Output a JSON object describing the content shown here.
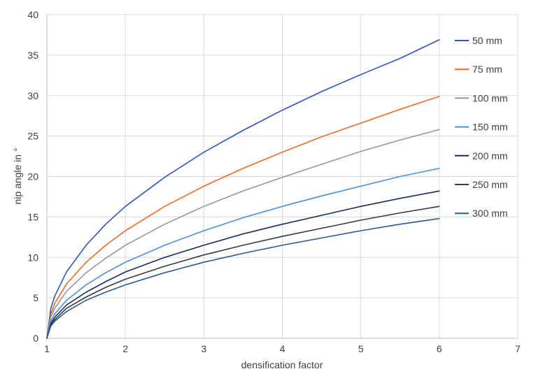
{
  "chart_data": {
    "type": "line",
    "title": "",
    "xlabel": "densification factor",
    "ylabel": "nip angle in °",
    "xlim": [
      1,
      7
    ],
    "ylim": [
      0,
      40
    ],
    "xticks": [
      "1",
      "2",
      "3",
      "4",
      "5",
      "6",
      "7"
    ],
    "yticks": [
      "0",
      "5",
      "10",
      "15",
      "20",
      "25",
      "30",
      "35",
      "40"
    ],
    "grid": true,
    "legend_position": "right",
    "x": [
      1,
      1.05,
      1.1,
      1.25,
      1.5,
      1.75,
      2,
      2.5,
      3,
      3.5,
      4,
      4.5,
      5,
      5.5,
      6
    ],
    "series": [
      {
        "name": "50 mm",
        "color": "#2f55c4",
        "values": [
          0,
          3.7,
          5.2,
          8.2,
          11.5,
          14.1,
          16.3,
          19.9,
          23.0,
          25.7,
          28.2,
          30.5,
          32.6,
          34.6,
          36.9
        ]
      },
      {
        "name": "75 mm",
        "color": "#ec6a25",
        "values": [
          0,
          3.0,
          4.3,
          6.7,
          9.4,
          11.5,
          13.3,
          16.3,
          18.8,
          21.0,
          23.0,
          24.9,
          26.6,
          28.3,
          29.9
        ]
      },
      {
        "name": "100 mm",
        "color": "#969696",
        "values": [
          0,
          2.6,
          3.7,
          5.8,
          8.1,
          9.9,
          11.5,
          14.1,
          16.3,
          18.2,
          19.9,
          21.5,
          23.1,
          24.5,
          25.8
        ]
      },
      {
        "name": "150 mm",
        "color": "#4a8fdb",
        "values": [
          0,
          2.1,
          3.0,
          4.7,
          6.6,
          8.1,
          9.4,
          11.5,
          13.3,
          14.9,
          16.3,
          17.6,
          18.8,
          20.0,
          21.0
        ]
      },
      {
        "name": "200 mm",
        "color": "#1c2c5e",
        "values": [
          0,
          1.8,
          2.6,
          4.1,
          5.7,
          7.0,
          8.2,
          10.0,
          11.5,
          12.9,
          14.1,
          15.2,
          16.3,
          17.3,
          18.2
        ]
      },
      {
        "name": "250 mm",
        "color": "#3a3a3a",
        "values": [
          0,
          1.6,
          2.3,
          3.7,
          5.1,
          6.3,
          7.3,
          8.9,
          10.3,
          11.5,
          12.6,
          13.6,
          14.6,
          15.5,
          16.3
        ]
      },
      {
        "name": "300 mm",
        "color": "#2a5a8e",
        "values": [
          0,
          1.5,
          2.1,
          3.3,
          4.7,
          5.7,
          6.6,
          8.1,
          9.4,
          10.5,
          11.5,
          12.4,
          13.3,
          14.1,
          14.8
        ]
      }
    ]
  }
}
